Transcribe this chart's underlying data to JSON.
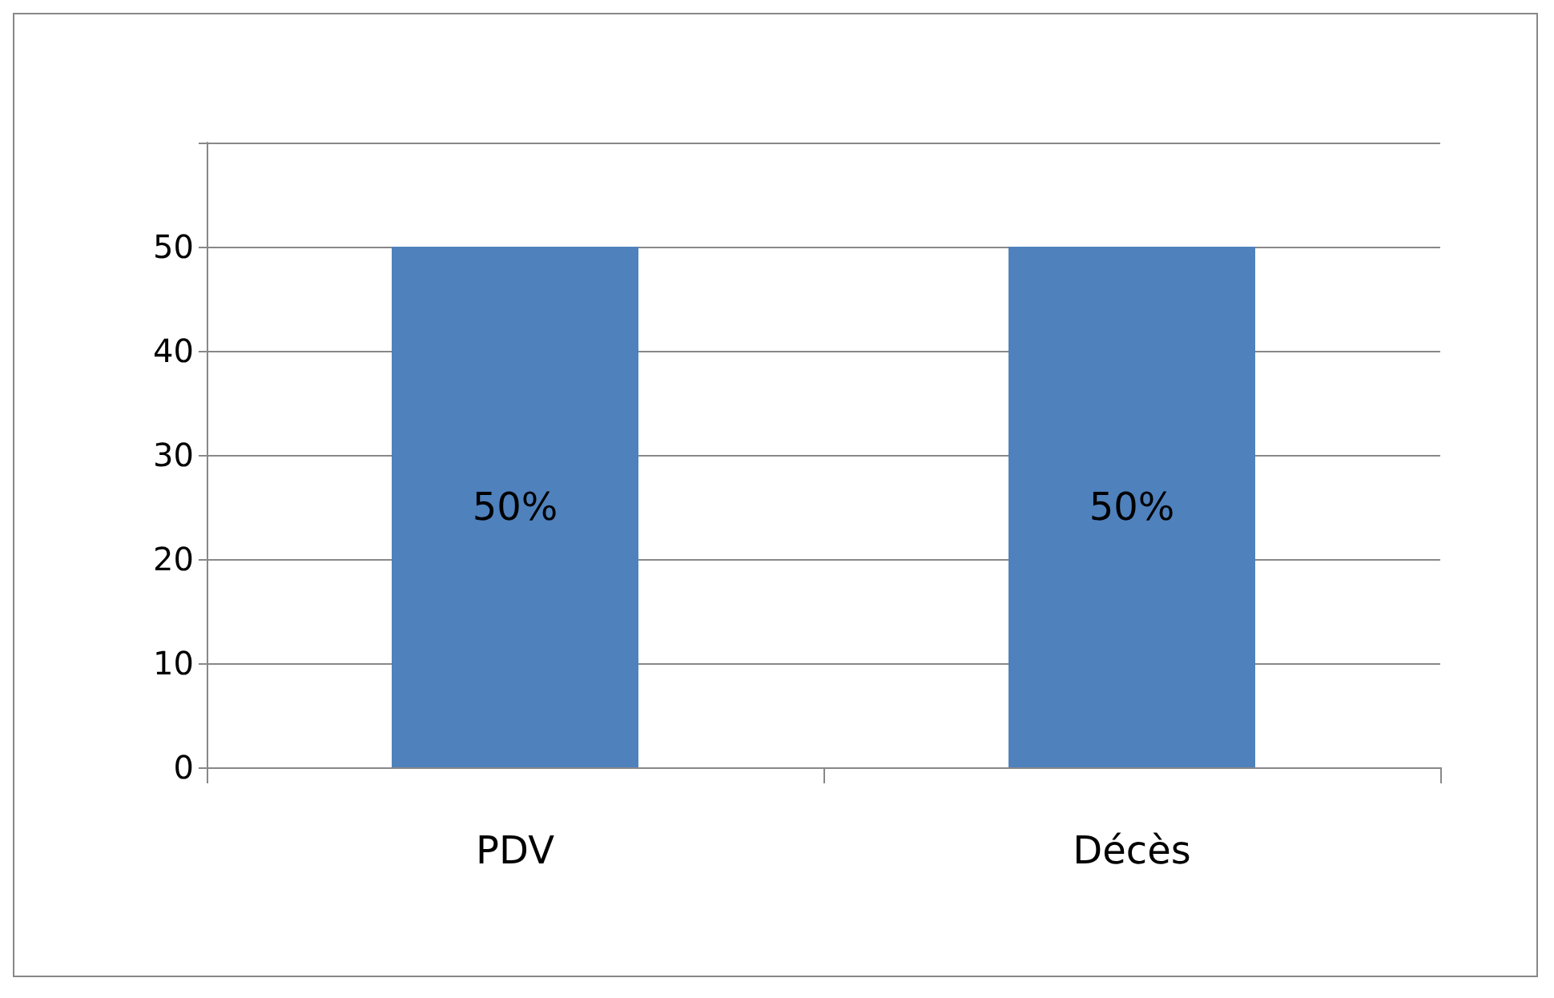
{
  "chart_data": {
    "type": "bar",
    "categories": [
      "PDV",
      "Décès"
    ],
    "values": [
      50,
      50
    ],
    "value_labels": [
      "50%",
      "50%"
    ],
    "color": "#4f81bd",
    "ylim": [
      0,
      60
    ],
    "yticks": [
      0,
      10,
      20,
      30,
      40,
      50,
      {
        "value": 60,
        "label": null
      }
    ],
    "grid": "y"
  }
}
